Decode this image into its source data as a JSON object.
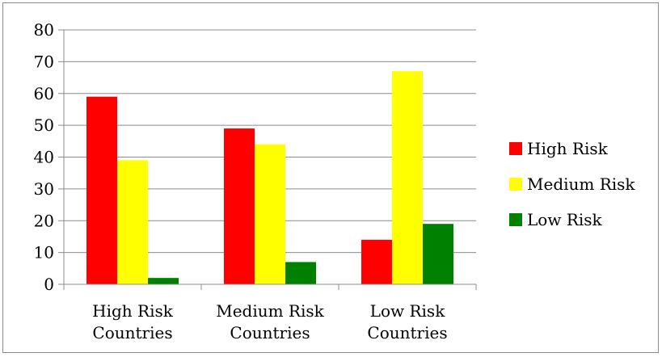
{
  "chart_data": {
    "type": "bar",
    "categories": [
      "High Risk\nCountries",
      "Medium Risk\nCountries",
      "Low Risk\nCountries"
    ],
    "series": [
      {
        "name": "High Risk",
        "color": "#ff0000",
        "values": [
          59,
          49,
          14
        ]
      },
      {
        "name": "Medium Risk",
        "color": "#ffff00",
        "values": [
          39,
          44,
          67
        ]
      },
      {
        "name": "Low Risk",
        "color": "#008000",
        "values": [
          2,
          7,
          19
        ]
      }
    ],
    "ylim": [
      0,
      80
    ],
    "yticks": [
      0,
      10,
      20,
      30,
      40,
      50,
      60,
      70,
      80
    ],
    "grid": true,
    "legend": "right"
  }
}
